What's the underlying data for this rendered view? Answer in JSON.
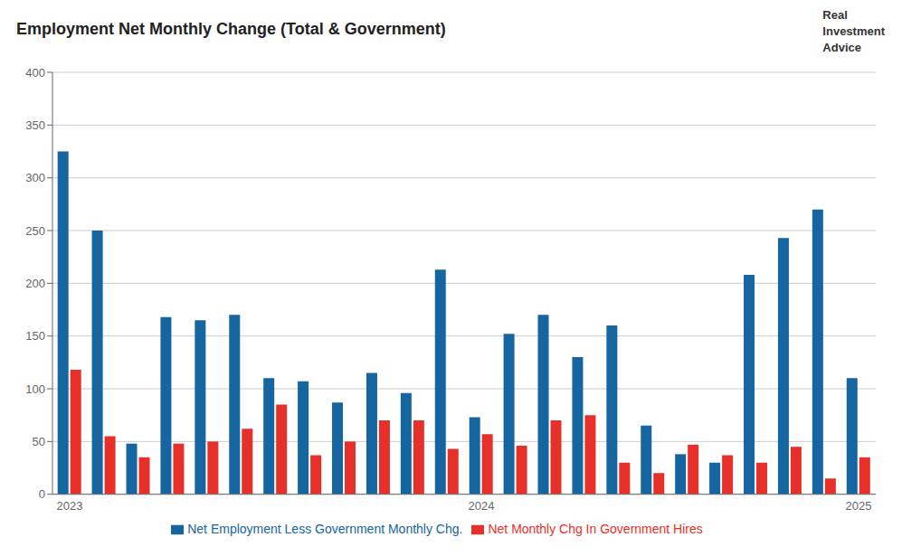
{
  "chart_data": {
    "type": "bar",
    "title": "Employment Net Monthly Change (Total & Government)",
    "categories": [
      "2023",
      null,
      null,
      null,
      null,
      null,
      null,
      null,
      null,
      null,
      null,
      null,
      "2024",
      null,
      null,
      null,
      null,
      null,
      null,
      null,
      null,
      null,
      null,
      "2025"
    ],
    "series": [
      {
        "name": "Net Employment Less Government Monthly Chg.",
        "color": "#1565a0",
        "values": [
          325,
          250,
          48,
          168,
          165,
          170,
          110,
          107,
          87,
          115,
          96,
          213,
          73,
          152,
          170,
          130,
          160,
          65,
          38,
          30,
          208,
          243,
          270,
          110
        ]
      },
      {
        "name": "Net Monthly Chg In Government Hires",
        "color": "#e8302a",
        "values": [
          118,
          55,
          35,
          48,
          50,
          62,
          85,
          37,
          50,
          70,
          70,
          43,
          57,
          46,
          70,
          75,
          30,
          20,
          47,
          37,
          30,
          45,
          15,
          35
        ]
      }
    ],
    "ylim": [
      0,
      400
    ],
    "yticks": [
      0,
      50,
      100,
      150,
      200,
      250,
      300,
      350,
      400
    ],
    "grid": true,
    "legend": "bottom",
    "annotation": "Real\nInvestment\nAdvice"
  }
}
